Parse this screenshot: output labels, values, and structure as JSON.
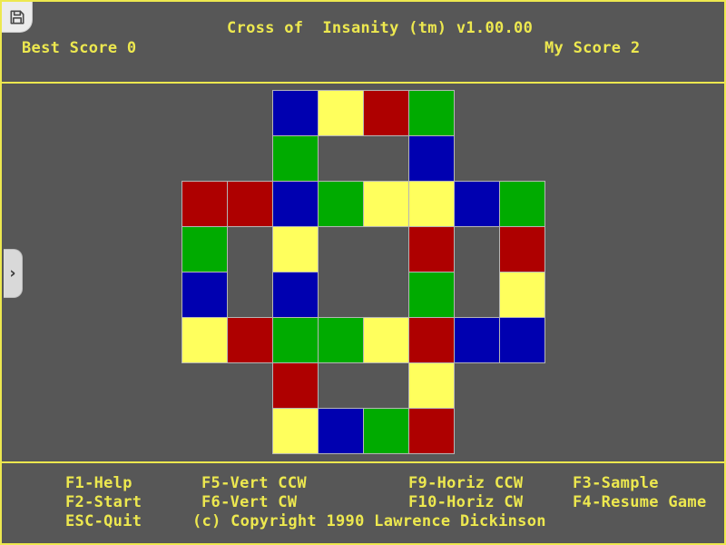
{
  "colors": {
    "background": "#575757",
    "accent_yellow": "#ede84f",
    "grid_line": "#b5b5b5"
  },
  "header": {
    "title": "Cross of  Insanity (tm) v1.00.00",
    "best_score_text": "Best Score 0",
    "best_score_value": "0",
    "my_score_text": "My Score 2",
    "my_score_value": "2"
  },
  "board": {
    "rows": 8,
    "cols": 8,
    "cell_size": 50,
    "grid": [
      "..BYRG..",
      "..G..B..",
      "RRBGYYBG",
      "G.Y..R.R",
      "B.B..G.Y",
      "YRGGYRBB",
      "..R..Y..",
      "..YBGR.."
    ],
    "palette": {
      "R": "#ae0000",
      "G": "#00ab00",
      "B": "#0000b0",
      "Y": "#ffff5d"
    }
  },
  "menu": {
    "f1": "F1-Help",
    "f2": "F2-Start",
    "esc": "ESC-Quit",
    "f5": "F5-Vert CCW",
    "f6": "F6-Vert CW",
    "copyright": "(c) Copyright 1990 Lawrence Dickinson",
    "f9": "F9-Horiz CCW",
    "f10": "F10-Horiz CW",
    "f3": "F3-Sample",
    "f4": "F4-Resume Game"
  },
  "overlay": {
    "save_icon": "floppy-disk-icon",
    "drawer_chevron": "›"
  }
}
